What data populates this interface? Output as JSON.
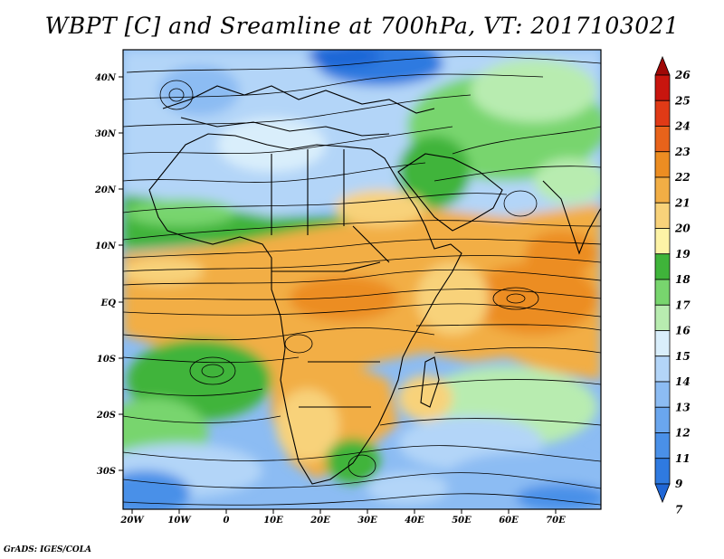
{
  "title": "WBPT [C] and Sreamline at 700hPa, VT: 2017103021",
  "credit": "GrADS: IGES/COLA",
  "map": {
    "x_ticks": [
      "20W",
      "10W",
      "0",
      "10E",
      "20E",
      "30E",
      "40E",
      "50E",
      "60E",
      "70E"
    ],
    "y_ticks": [
      "40N",
      "30N",
      "20N",
      "10N",
      "EQ",
      "10S",
      "20S",
      "30S"
    ]
  },
  "colorbar": {
    "labels": [
      "7",
      "9",
      "11",
      "12",
      "13",
      "14",
      "15",
      "16",
      "17",
      "18",
      "19",
      "20",
      "21",
      "22",
      "23",
      "24",
      "25",
      "26"
    ],
    "colors": [
      "#1f66d6",
      "#2f7ae0",
      "#4a90e8",
      "#6aa6ee",
      "#8cbcf3",
      "#b3d5f8",
      "#d9eefb",
      "#b8ecb0",
      "#78d56e",
      "#3fb43a",
      "#fdf3a6",
      "#f8d27a",
      "#f2ae45",
      "#ec8d22",
      "#e8631b",
      "#e03a16",
      "#c8150e",
      "#a00806"
    ]
  }
}
